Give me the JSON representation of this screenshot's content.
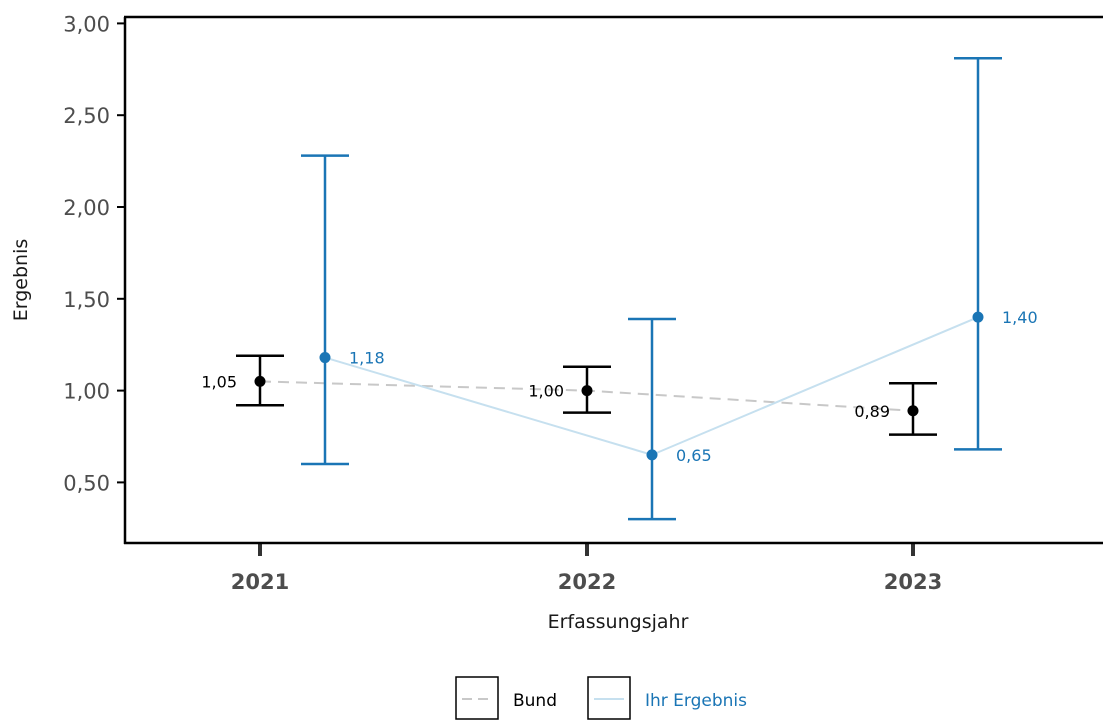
{
  "chart_data": {
    "type": "scatter",
    "x": [
      "2021",
      "2022",
      "2023"
    ],
    "xlabel": "Erfassungsjahr",
    "ylabel": "Ergebnis",
    "ylim": [
      0.3,
      3.0
    ],
    "yticks": [
      "0,50",
      "1,00",
      "1,50",
      "2,00",
      "2,50",
      "3,00"
    ],
    "ytick_values": [
      0.5,
      1.0,
      1.5,
      2.0,
      2.5,
      3.0
    ],
    "grid": false,
    "legend_position": "bottom",
    "series": [
      {
        "name": "Bund",
        "color": "#000000",
        "line_color": "#c8c8c8",
        "line_style": "dashed",
        "values": [
          1.05,
          1.0,
          0.89
        ],
        "lower": [
          0.92,
          0.88,
          0.76
        ],
        "upper": [
          1.19,
          1.13,
          1.04
        ],
        "labels": [
          "1,05",
          "1,00",
          "0,89"
        ]
      },
      {
        "name": "Ihr  Ergebnis",
        "color": "#1a75b5",
        "line_color": "#c6e0ef",
        "line_style": "solid",
        "values": [
          1.18,
          0.65,
          1.4
        ],
        "lower": [
          0.6,
          0.3,
          0.68
        ],
        "upper": [
          2.28,
          1.39,
          2.81
        ],
        "labels": [
          "1,18",
          "0,65",
          "1,40"
        ]
      }
    ]
  }
}
